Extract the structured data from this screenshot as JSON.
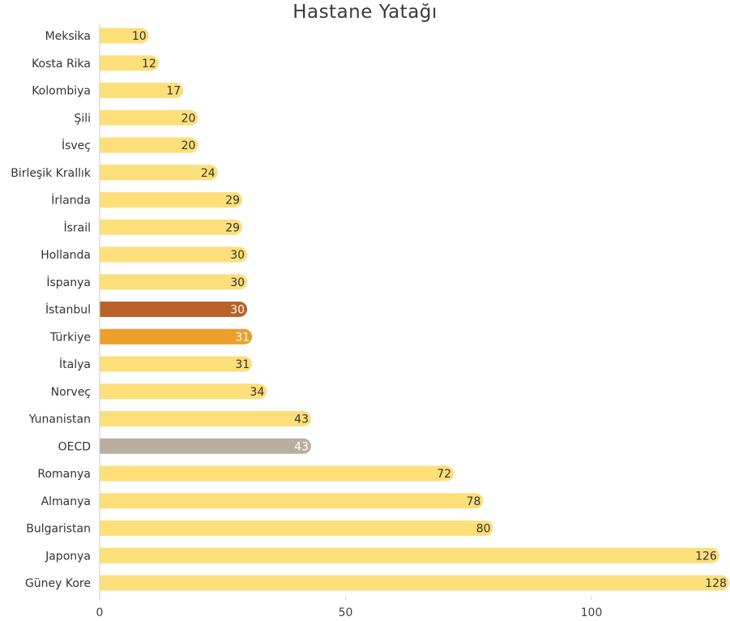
{
  "chart_data": {
    "type": "bar",
    "orientation": "horizontal",
    "title": "Hastane Yatağı",
    "xlabel": "",
    "ylabel": "",
    "xlim": [
      0,
      128
    ],
    "x_ticks": [
      0,
      50,
      100
    ],
    "grid": false,
    "categories": [
      "Meksika",
      "Kosta Rika",
      "Kolombiya",
      "Şili",
      "İsveç",
      "Birleşik Krallık",
      "İrlanda",
      "İsrail",
      "Hollanda",
      "İspanya",
      "İstanbul",
      "Türkiye",
      "İtalya",
      "Norveç",
      "Yunanistan",
      "OECD",
      "Romanya",
      "Almanya",
      "Bulgaristan",
      "Japonya",
      "Güney Kore"
    ],
    "values": [
      10,
      12,
      17,
      20,
      20,
      24,
      29,
      29,
      30,
      30,
      30,
      31,
      31,
      34,
      43,
      43,
      72,
      78,
      80,
      126,
      128
    ],
    "colors": {
      "default": "#FDDF7A",
      "İstanbul": "#B8622A",
      "Türkiye": "#EC9F2B",
      "OECD": "#B9AFA1"
    },
    "value_label_colors": {
      "default": "#333333",
      "highlight": "#FFFFFF"
    }
  }
}
